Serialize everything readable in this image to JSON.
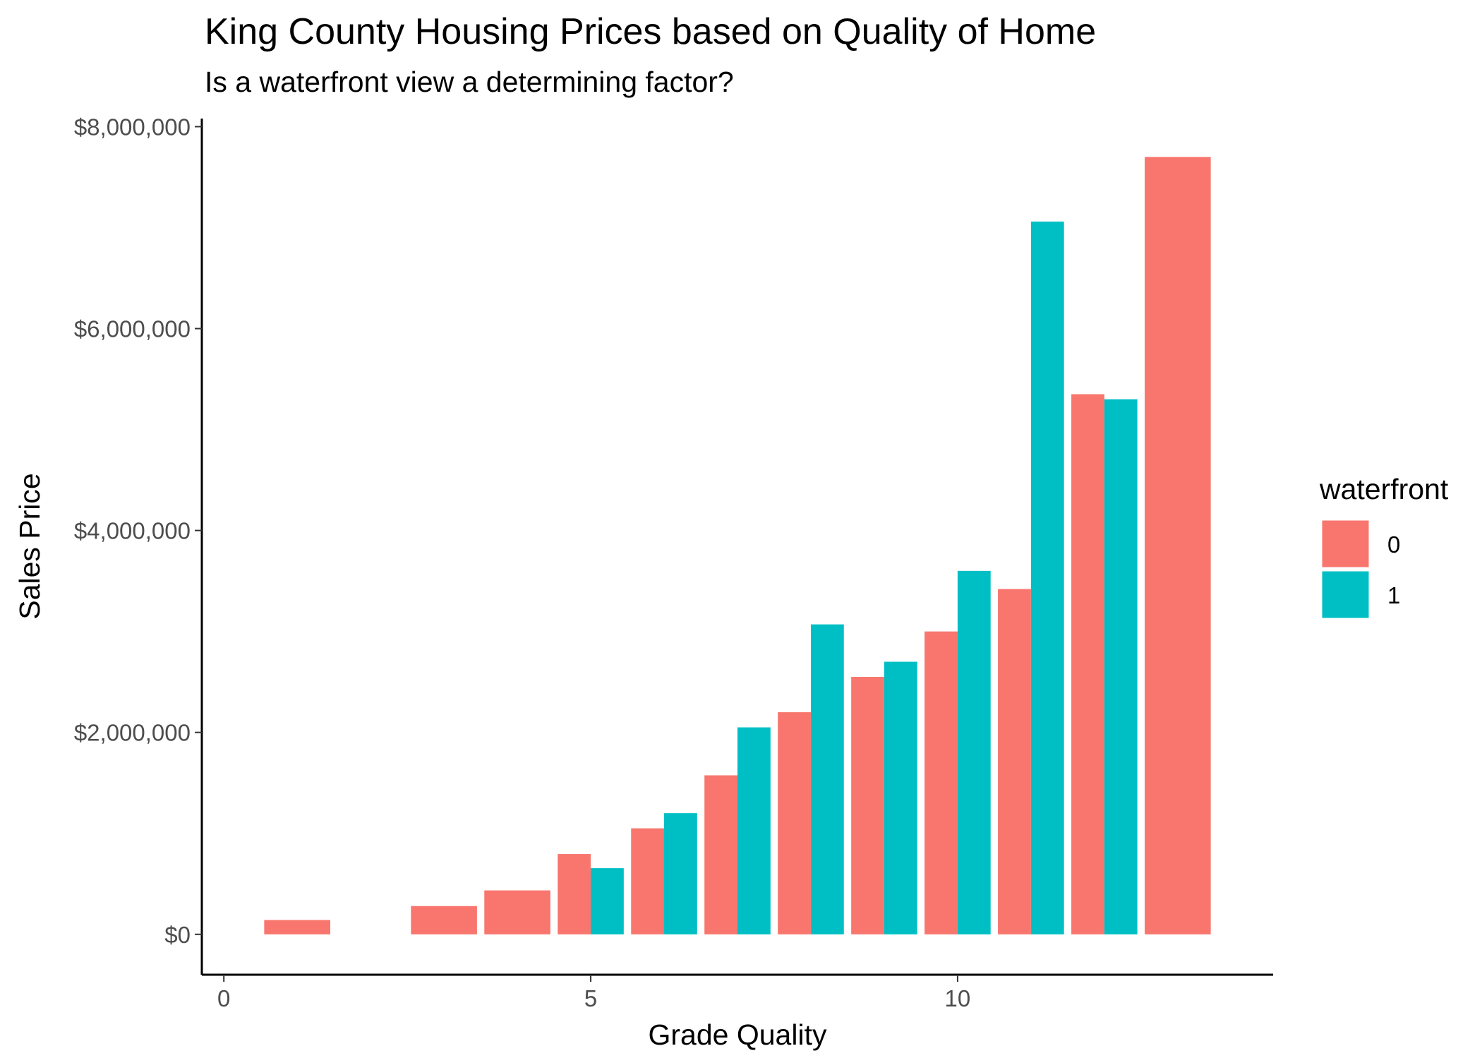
{
  "chart_data": {
    "type": "bar",
    "title": "King County Housing Prices based on Quality of Home",
    "subtitle": "Is a waterfront view a determining factor?",
    "xlabel": "Grade Quality",
    "ylabel": "Sales Price",
    "xlim": [
      -0.3,
      14.3
    ],
    "ylim": [
      -400000,
      8080000
    ],
    "x_ticks": [
      {
        "value": 0,
        "label": "0"
      },
      {
        "value": 5,
        "label": "5"
      },
      {
        "value": 10,
        "label": "10"
      }
    ],
    "y_ticks": [
      {
        "value": 0,
        "label": "$0"
      },
      {
        "value": 2000000,
        "label": "$2,000,000"
      },
      {
        "value": 4000000,
        "label": "$4,000,000"
      },
      {
        "value": 6000000,
        "label": "$6,000,000"
      },
      {
        "value": 8000000,
        "label": "$8,000,000"
      }
    ],
    "grid": false,
    "legend": {
      "title": "waterfront",
      "placement": "right",
      "items": [
        {
          "label": "0",
          "color": "#F8766D"
        },
        {
          "label": "1",
          "color": "#00BFC4"
        }
      ]
    },
    "bar_width": 0.9,
    "series": [
      {
        "legend_label": "0",
        "color": "#F8766D",
        "points": [
          {
            "x": 1,
            "y": 142000
          },
          {
            "x": 3,
            "y": 280000
          },
          {
            "x": 4,
            "y": 435000
          },
          {
            "x": 5,
            "y": 795000
          },
          {
            "x": 6,
            "y": 1050000
          },
          {
            "x": 7,
            "y": 1575000
          },
          {
            "x": 8,
            "y": 2200000
          },
          {
            "x": 9,
            "y": 2550000
          },
          {
            "x": 10,
            "y": 3000000
          },
          {
            "x": 11,
            "y": 3420000
          },
          {
            "x": 12,
            "y": 5350000
          },
          {
            "x": 13,
            "y": 7700000
          }
        ]
      },
      {
        "legend_label": "1",
        "color": "#00BFC4",
        "points": [
          {
            "x": 5,
            "y": 655000
          },
          {
            "x": 6,
            "y": 1200000
          },
          {
            "x": 7,
            "y": 2050000
          },
          {
            "x": 8,
            "y": 3070000
          },
          {
            "x": 9,
            "y": 2700000
          },
          {
            "x": 10,
            "y": 3600000
          },
          {
            "x": 11,
            "y": 7060000
          },
          {
            "x": 12,
            "y": 5300000
          }
        ]
      }
    ]
  }
}
